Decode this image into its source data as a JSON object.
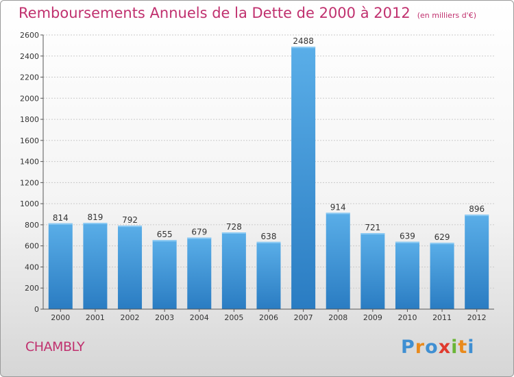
{
  "header": {
    "title": "Remboursements Annuels de la Dette de 2000 à 2012",
    "unit": "(en milliers d'€)"
  },
  "commune": "CHAMBLY",
  "logo": {
    "letters": [
      "P",
      "r",
      "o",
      "x",
      "i",
      "t",
      "i"
    ],
    "colors": [
      "#3f8fd2",
      "#e98a1c",
      "#3f8fd2",
      "#e03a2e",
      "#6ab536",
      "#e98a1c",
      "#3f8fd2"
    ]
  },
  "chart_data": {
    "type": "bar",
    "categories": [
      "2000",
      "2001",
      "2002",
      "2003",
      "2004",
      "2005",
      "2006",
      "2007",
      "2008",
      "2009",
      "2010",
      "2011",
      "2012"
    ],
    "values": [
      814,
      819,
      792,
      655,
      679,
      728,
      638,
      2488,
      914,
      721,
      639,
      629,
      896
    ],
    "title": "Remboursements Annuels de la Dette de 2000 à 2012",
    "ylim": [
      0,
      2600
    ],
    "yticks": [
      0,
      200,
      400,
      600,
      800,
      1000,
      1200,
      1400,
      1600,
      1800,
      2000,
      2200,
      2400,
      2600
    ],
    "grid": true,
    "bar_color": "#3a8fd8"
  }
}
